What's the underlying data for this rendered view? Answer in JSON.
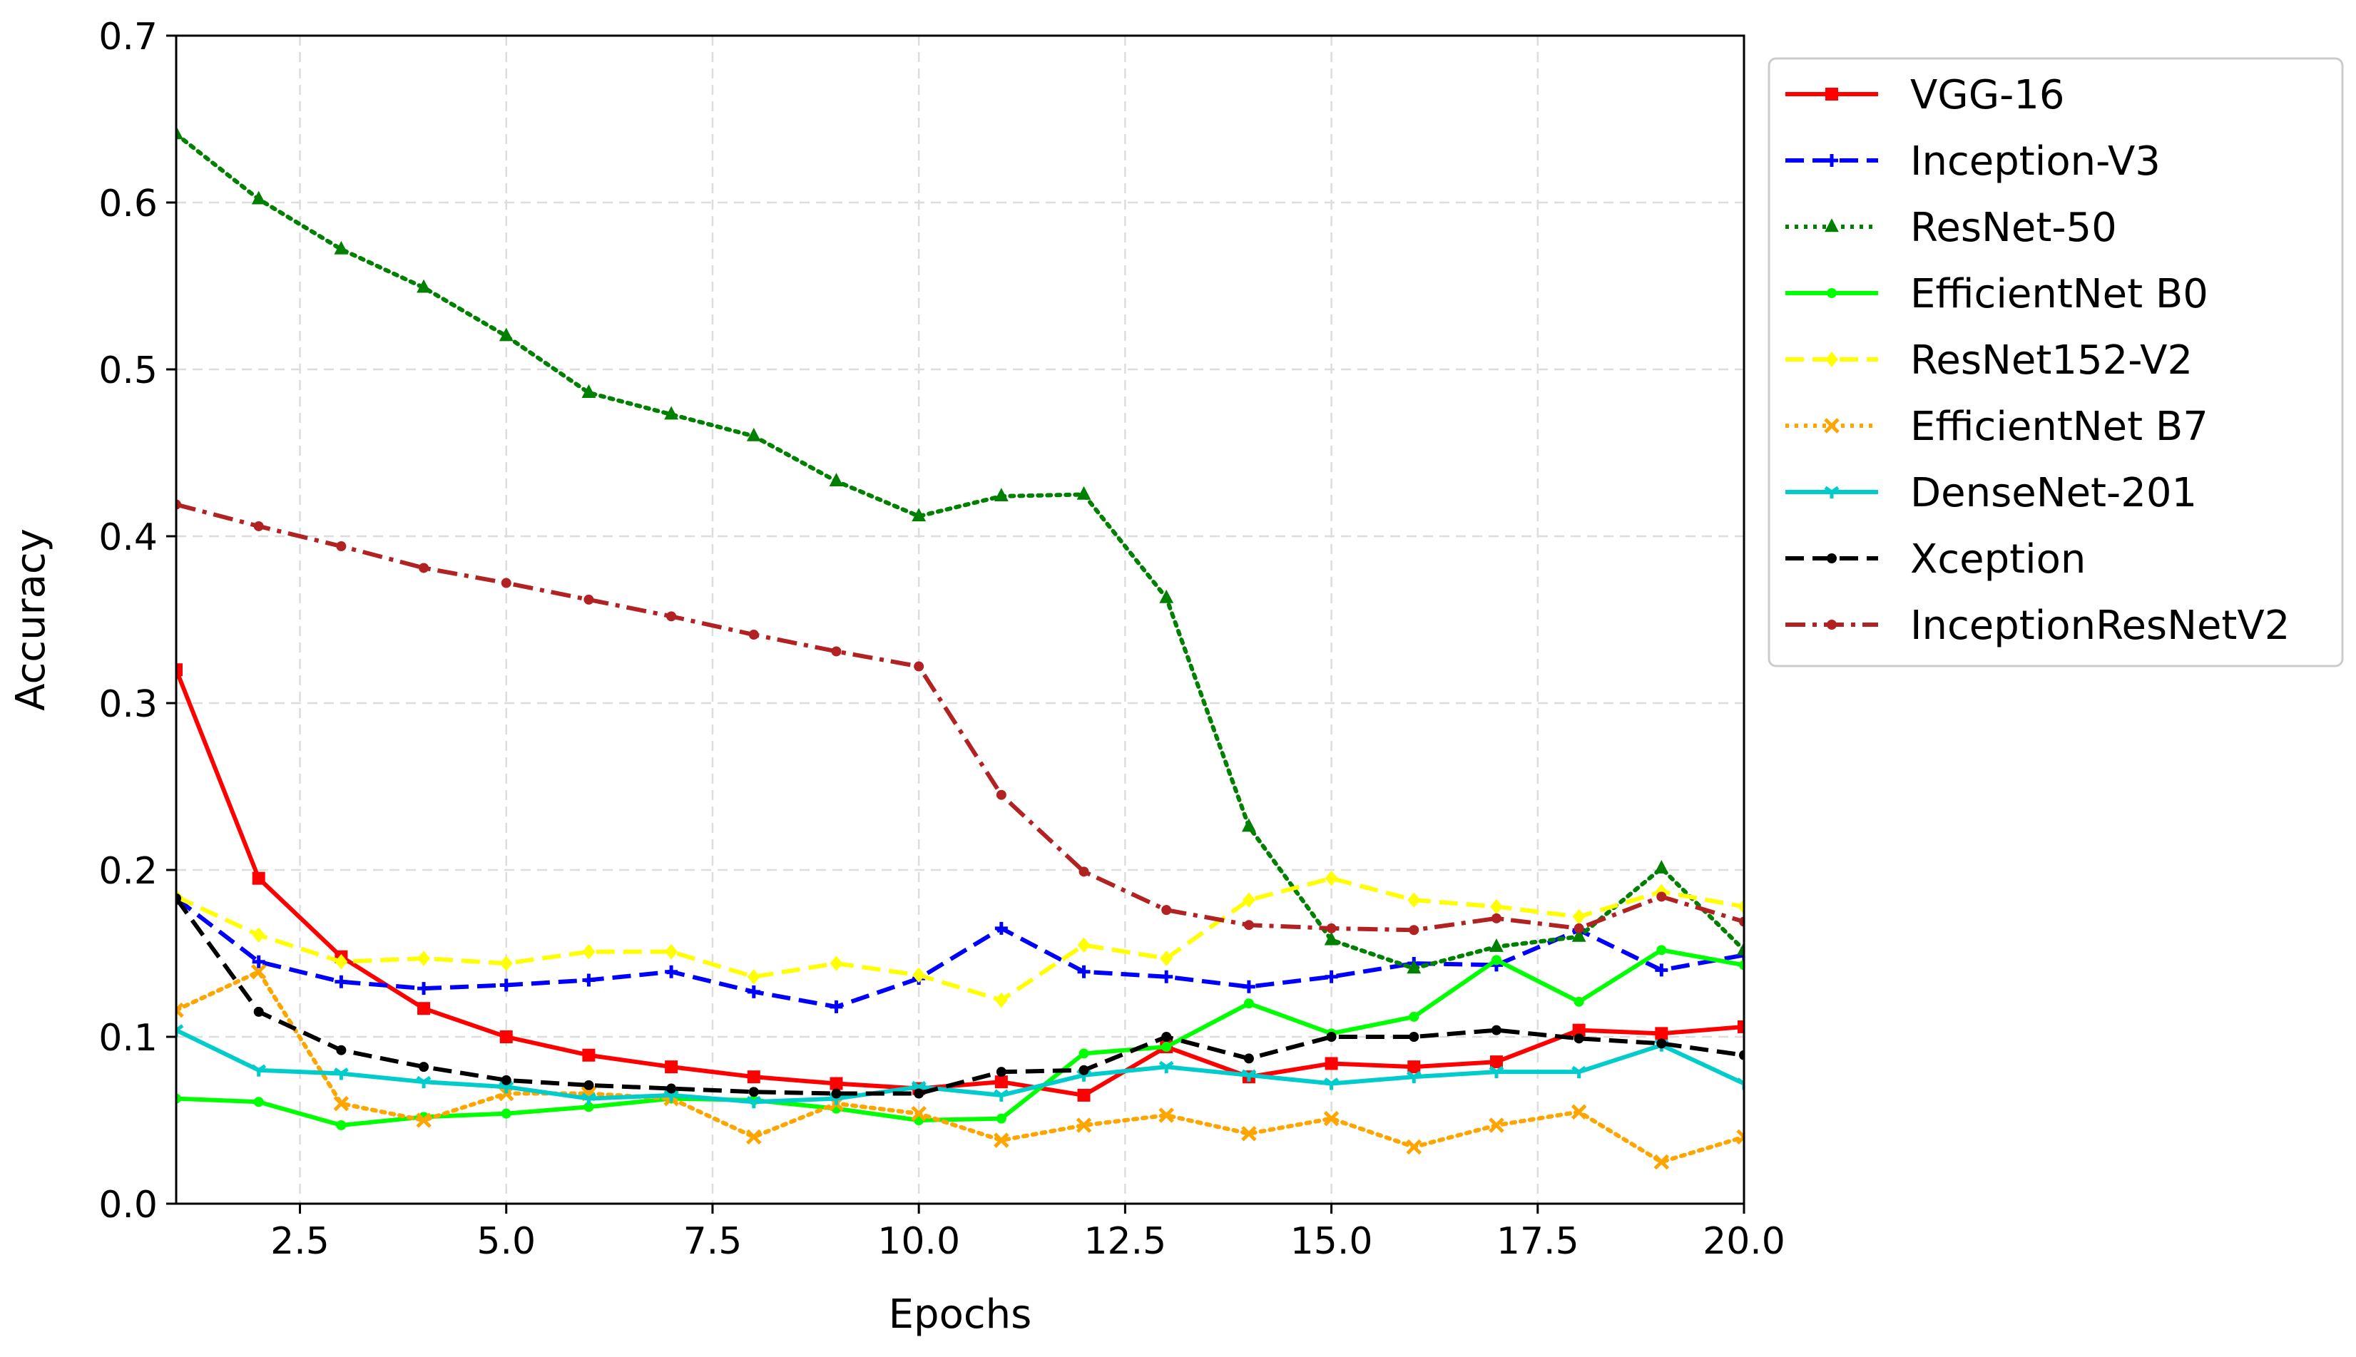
{
  "chart_data": {
    "type": "line",
    "xlabel": "Epochs",
    "ylabel": "Accuracy",
    "xlim": [
      1,
      20
    ],
    "ylim": [
      0.0,
      0.7
    ],
    "xticks": [
      "2.5",
      "5.0",
      "7.5",
      "10.0",
      "12.5",
      "15.0",
      "17.5",
      "20.0"
    ],
    "yticks": [
      "0.0",
      "0.1",
      "0.2",
      "0.3",
      "0.4",
      "0.5",
      "0.6",
      "0.7"
    ],
    "grid": true,
    "legend_position": "outside-right-top",
    "x": [
      1,
      2,
      3,
      4,
      5,
      6,
      7,
      8,
      9,
      10,
      11,
      12,
      13,
      14,
      15,
      16,
      17,
      18,
      19,
      20
    ],
    "series": [
      {
        "name": "VGG-16",
        "color": "#ff0000",
        "dash": "solid",
        "marker": "square",
        "values": [
          0.32,
          0.195,
          0.148,
          0.117,
          0.1,
          0.089,
          0.082,
          0.076,
          0.072,
          0.069,
          0.073,
          0.065,
          0.094,
          0.076,
          0.084,
          0.082,
          0.085,
          0.104,
          0.102,
          0.106
        ]
      },
      {
        "name": "Inception-V3",
        "color": "#0000ff",
        "dash": "dashed",
        "marker": "plus",
        "values": [
          0.183,
          0.145,
          0.133,
          0.129,
          0.131,
          0.134,
          0.139,
          0.127,
          0.118,
          0.135,
          0.165,
          0.139,
          0.136,
          0.13,
          0.136,
          0.144,
          0.143,
          0.164,
          0.14,
          0.149
        ]
      },
      {
        "name": "ResNet-50",
        "color": "#008000",
        "dash": "dotted",
        "marker": "triangle",
        "values": [
          0.641,
          0.602,
          0.572,
          0.549,
          0.52,
          0.486,
          0.473,
          0.46,
          0.433,
          0.412,
          0.424,
          0.425,
          0.363,
          0.226,
          0.158,
          0.141,
          0.154,
          0.16,
          0.201,
          0.152
        ]
      },
      {
        "name": "EfficientNet B0",
        "color": "#00ff00",
        "dash": "solid",
        "marker": "dot",
        "values": [
          0.063,
          0.061,
          0.047,
          0.052,
          0.054,
          0.058,
          0.063,
          0.062,
          0.057,
          0.05,
          0.051,
          0.09,
          0.094,
          0.12,
          0.102,
          0.112,
          0.146,
          0.121,
          0.152,
          0.143
        ]
      },
      {
        "name": "ResNet152-V2",
        "color": "#ffff00",
        "dash": "dashed",
        "marker": "diamond",
        "values": [
          0.184,
          0.161,
          0.145,
          0.147,
          0.144,
          0.151,
          0.151,
          0.136,
          0.144,
          0.137,
          0.122,
          0.155,
          0.147,
          0.182,
          0.195,
          0.182,
          0.178,
          0.172,
          0.187,
          0.178
        ]
      },
      {
        "name": "EfficientNet B7",
        "color": "#ffa500",
        "dash": "dotted",
        "marker": "x",
        "values": [
          0.116,
          0.139,
          0.06,
          0.05,
          0.066,
          0.066,
          0.063,
          0.04,
          0.06,
          0.054,
          0.038,
          0.047,
          0.053,
          0.042,
          0.051,
          0.034,
          0.047,
          0.055,
          0.025,
          0.04
        ]
      },
      {
        "name": "DenseNet-201",
        "color": "#00cccc",
        "dash": "solid",
        "marker": "tri",
        "values": [
          0.104,
          0.08,
          0.078,
          0.073,
          0.07,
          0.063,
          0.065,
          0.061,
          0.063,
          0.07,
          0.065,
          0.077,
          0.082,
          0.077,
          0.072,
          0.076,
          0.079,
          0.079,
          0.095,
          0.072
        ]
      },
      {
        "name": "Xception",
        "color": "#000000",
        "dash": "dashed",
        "marker": "dot",
        "values": [
          0.183,
          0.115,
          0.092,
          0.082,
          0.074,
          0.071,
          0.069,
          0.067,
          0.066,
          0.066,
          0.079,
          0.08,
          0.1,
          0.087,
          0.1,
          0.1,
          0.104,
          0.099,
          0.096,
          0.089
        ]
      },
      {
        "name": "InceptionResNetV2",
        "color": "#b22222",
        "dash": "dashdot",
        "marker": "dot",
        "values": [
          0.419,
          0.406,
          0.394,
          0.381,
          0.372,
          0.362,
          0.352,
          0.341,
          0.331,
          0.322,
          0.245,
          0.199,
          0.176,
          0.167,
          0.165,
          0.164,
          0.171,
          0.165,
          0.184,
          0.169
        ]
      }
    ]
  }
}
